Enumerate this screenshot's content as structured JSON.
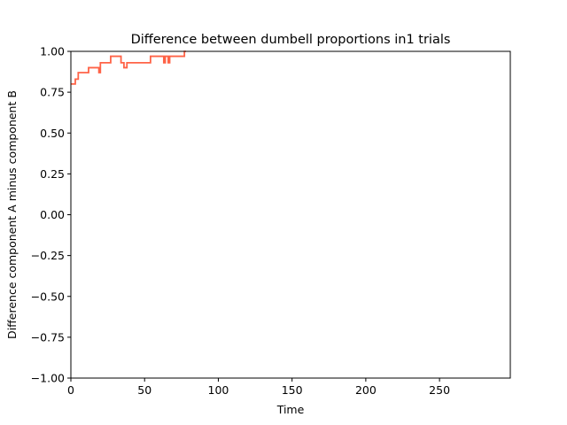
{
  "chart_data": {
    "type": "line",
    "title": "Difference between dumbell proportions in1 trials",
    "xlabel": "Time",
    "ylabel": "Difference component A minus component B",
    "xlim": [
      0,
      298
    ],
    "ylim": [
      -1.0,
      1.0
    ],
    "grid": false,
    "x_ticks": [
      0,
      50,
      100,
      150,
      200,
      250
    ],
    "x_tick_labels": [
      "0",
      "50",
      "100",
      "150",
      "200",
      "250"
    ],
    "y_ticks": [
      1.0,
      0.75,
      0.5,
      0.25,
      0.0,
      -0.25,
      -0.5,
      -0.75,
      -1.0
    ],
    "y_tick_labels": [
      "1.00",
      "0.75",
      "0.50",
      "0.25",
      "0.00",
      "−0.25",
      "−0.50",
      "−0.75",
      "−1.00"
    ],
    "series": [
      {
        "color": "#ff6347",
        "x": [
          0,
          3,
          3,
          4,
          4,
          5,
          5,
          6,
          6,
          12,
          12,
          18,
          18,
          19,
          19,
          20,
          20,
          21,
          21,
          26,
          26,
          27,
          27,
          34,
          34,
          35,
          35,
          36,
          36,
          37,
          37,
          38,
          38,
          42,
          42,
          54,
          54,
          55,
          55,
          62,
          62,
          63,
          63,
          64,
          64,
          65,
          65,
          66,
          66,
          67,
          67,
          68,
          68,
          77,
          77,
          78
        ],
        "y": [
          0.8,
          0.8,
          0.83,
          0.83,
          0.83,
          0.83,
          0.87,
          0.87,
          0.87,
          0.87,
          0.9,
          0.9,
          0.9,
          0.9,
          0.87,
          0.87,
          0.93,
          0.93,
          0.93,
          0.93,
          0.93,
          0.93,
          0.97,
          0.97,
          0.93,
          0.93,
          0.93,
          0.93,
          0.9,
          0.9,
          0.9,
          0.9,
          0.93,
          0.93,
          0.93,
          0.93,
          0.97,
          0.97,
          0.97,
          0.97,
          0.97,
          0.97,
          0.93,
          0.93,
          0.97,
          0.97,
          0.97,
          0.97,
          0.93,
          0.93,
          0.97,
          0.97,
          0.97,
          0.97,
          1.0,
          1.0
        ]
      }
    ]
  }
}
